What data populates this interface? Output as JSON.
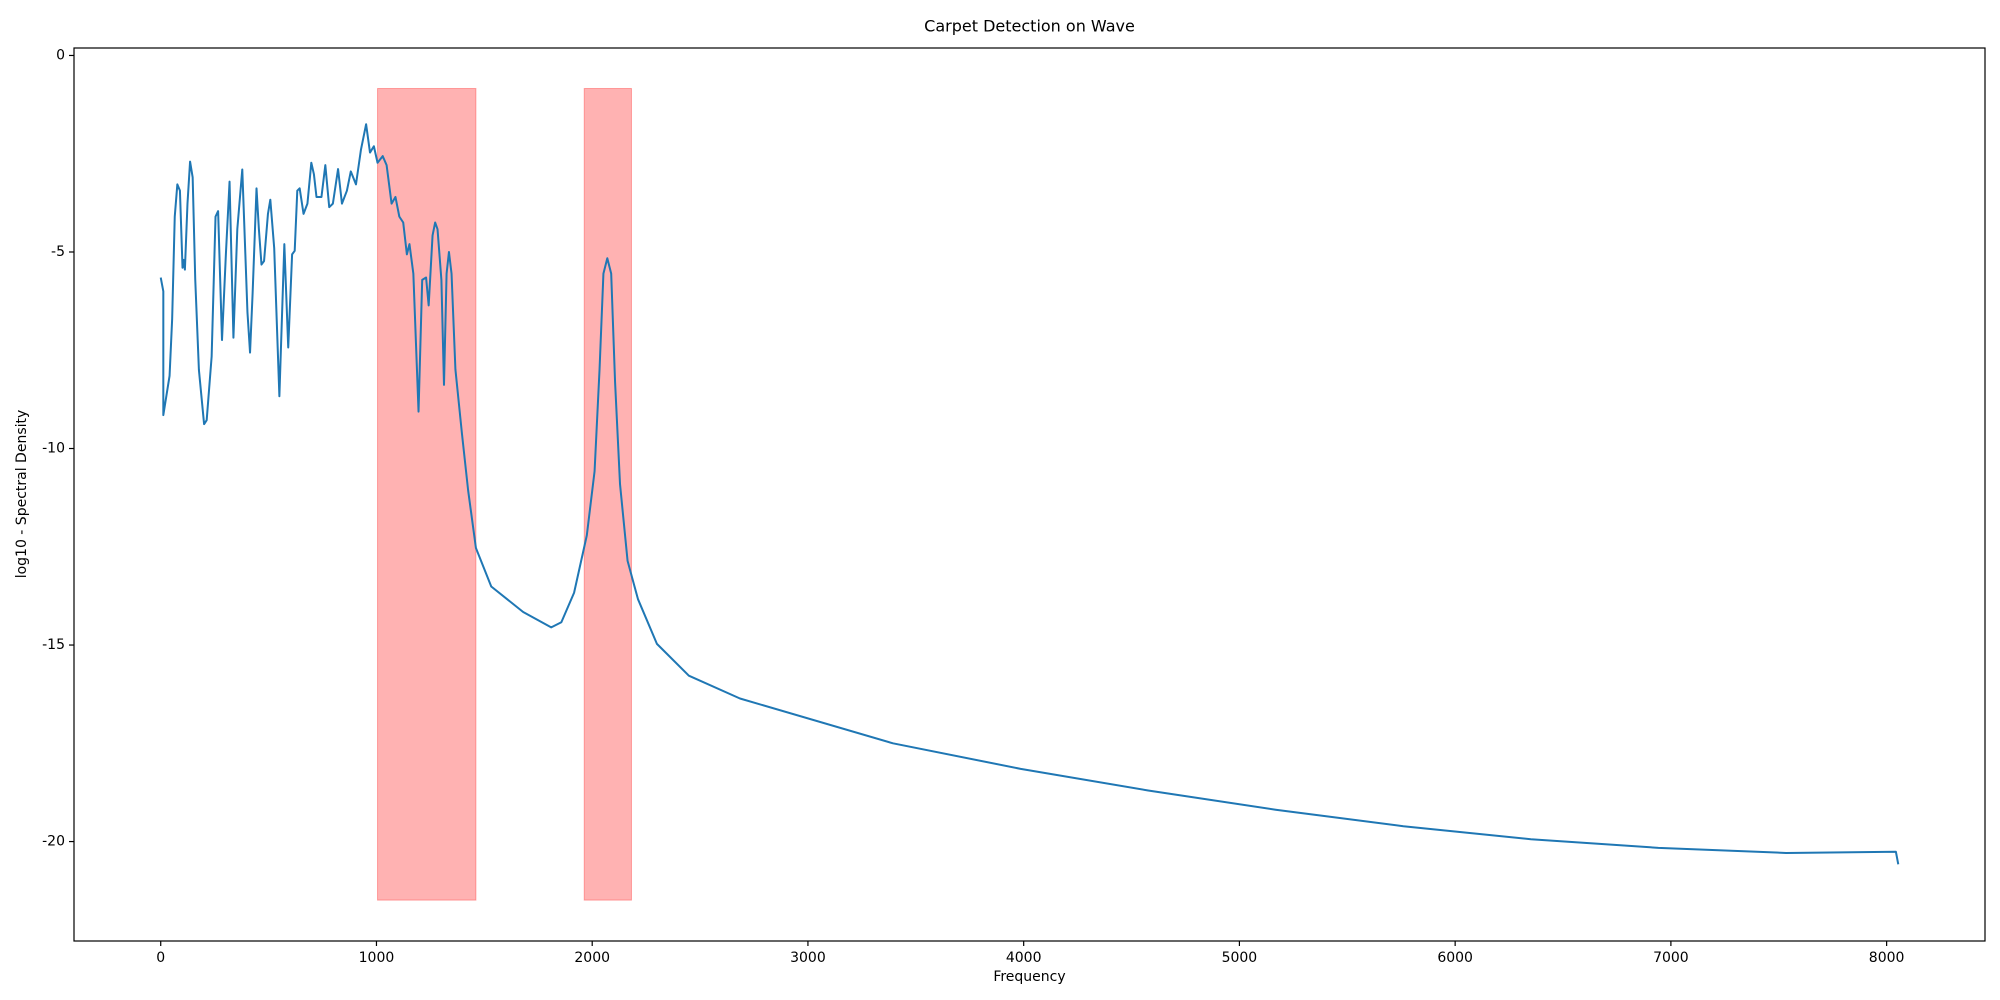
{
  "chart_data": {
    "type": "line",
    "title": "Carpet Detection on Wave",
    "xlabel": "Frequency",
    "ylabel": "log10 - Spectral Density",
    "color": "#1f77b4",
    "x": [
      0,
      12,
      12,
      41,
      53,
      65,
      77,
      89,
      101,
      106,
      112,
      124,
      136,
      148,
      160,
      177,
      201,
      213,
      236,
      254,
      266,
      284,
      302,
      319,
      337,
      355,
      378,
      402,
      414,
      426,
      444,
      455,
      467,
      479,
      497,
      508,
      526,
      550,
      573,
      591,
      609,
      621,
      633,
      644,
      662,
      680,
      698,
      710,
      722,
      745,
      763,
      781,
      798,
      822,
      840,
      863,
      881,
      905,
      928,
      952,
      970,
      988,
      1005,
      1029,
      1047,
      1070,
      1088,
      1106,
      1124,
      1141,
      1153,
      1171,
      1195,
      1212,
      1230,
      1242,
      1260,
      1272,
      1283,
      1301,
      1313,
      1325,
      1336,
      1348,
      1366,
      1396,
      1425,
      1461,
      1532,
      1680,
      1810,
      1857,
      1916,
      1975,
      2011,
      2034,
      2052,
      2070,
      2088,
      2106,
      2129,
      2164,
      2212,
      2300,
      2448,
      2685,
      3394,
      3986,
      4577,
      5168,
      5760,
      6351,
      6942,
      7534,
      8043,
      8054
    ],
    "values": [
      -5.65,
      -6.0,
      -9.15,
      -8.15,
      -6.7,
      -4.1,
      -3.28,
      -3.44,
      -5.4,
      -5.2,
      -5.45,
      -3.77,
      -2.7,
      -3.1,
      -5.7,
      -8.0,
      -9.38,
      -9.28,
      -7.66,
      -4.1,
      -3.96,
      -7.24,
      -5.06,
      -3.21,
      -7.18,
      -4.42,
      -2.9,
      -6.53,
      -7.56,
      -6.04,
      -3.38,
      -4.42,
      -5.32,
      -5.23,
      -4.03,
      -3.67,
      -4.9,
      -8.67,
      -4.8,
      -7.43,
      -5.06,
      -4.97,
      -3.44,
      -3.38,
      -4.03,
      -3.77,
      -2.73,
      -3.02,
      -3.6,
      -3.6,
      -2.79,
      -3.86,
      -3.77,
      -2.89,
      -3.77,
      -3.44,
      -2.95,
      -3.28,
      -2.4,
      -1.75,
      -2.47,
      -2.31,
      -2.73,
      -2.56,
      -2.79,
      -3.77,
      -3.6,
      -4.1,
      -4.25,
      -5.06,
      -4.8,
      -5.55,
      -9.06,
      -5.71,
      -5.65,
      -6.36,
      -4.58,
      -4.25,
      -4.42,
      -5.71,
      -8.38,
      -5.55,
      -5.0,
      -5.55,
      -7.99,
      -9.61,
      -11.07,
      -12.53,
      -13.51,
      -14.16,
      -14.55,
      -14.42,
      -13.67,
      -12.21,
      -10.58,
      -7.99,
      -5.55,
      -5.16,
      -5.55,
      -8.31,
      -10.91,
      -12.86,
      -13.83,
      -14.97,
      -15.78,
      -16.36,
      -17.5,
      -18.15,
      -18.7,
      -19.19,
      -19.61,
      -19.94,
      -20.16,
      -20.29,
      -20.26,
      -20.58
    ],
    "spans": [
      {
        "x": [
          1005,
          1461
        ],
        "y": [
          -0.84,
          -21.49
        ]
      },
      {
        "x": [
          1963,
          2182
        ],
        "y": [
          -0.84,
          -21.49
        ]
      }
    ],
    "span_color": "#ff0000",
    "span_opacity": 0.3,
    "xlim": [
      -402,
      8456
    ],
    "ylim": [
      -22.53,
      0.19
    ],
    "xticks": [
      0,
      1000,
      2000,
      3000,
      4000,
      5000,
      6000,
      7000,
      8000
    ],
    "yticks": [
      0,
      -5,
      -10,
      -15,
      -20
    ]
  }
}
